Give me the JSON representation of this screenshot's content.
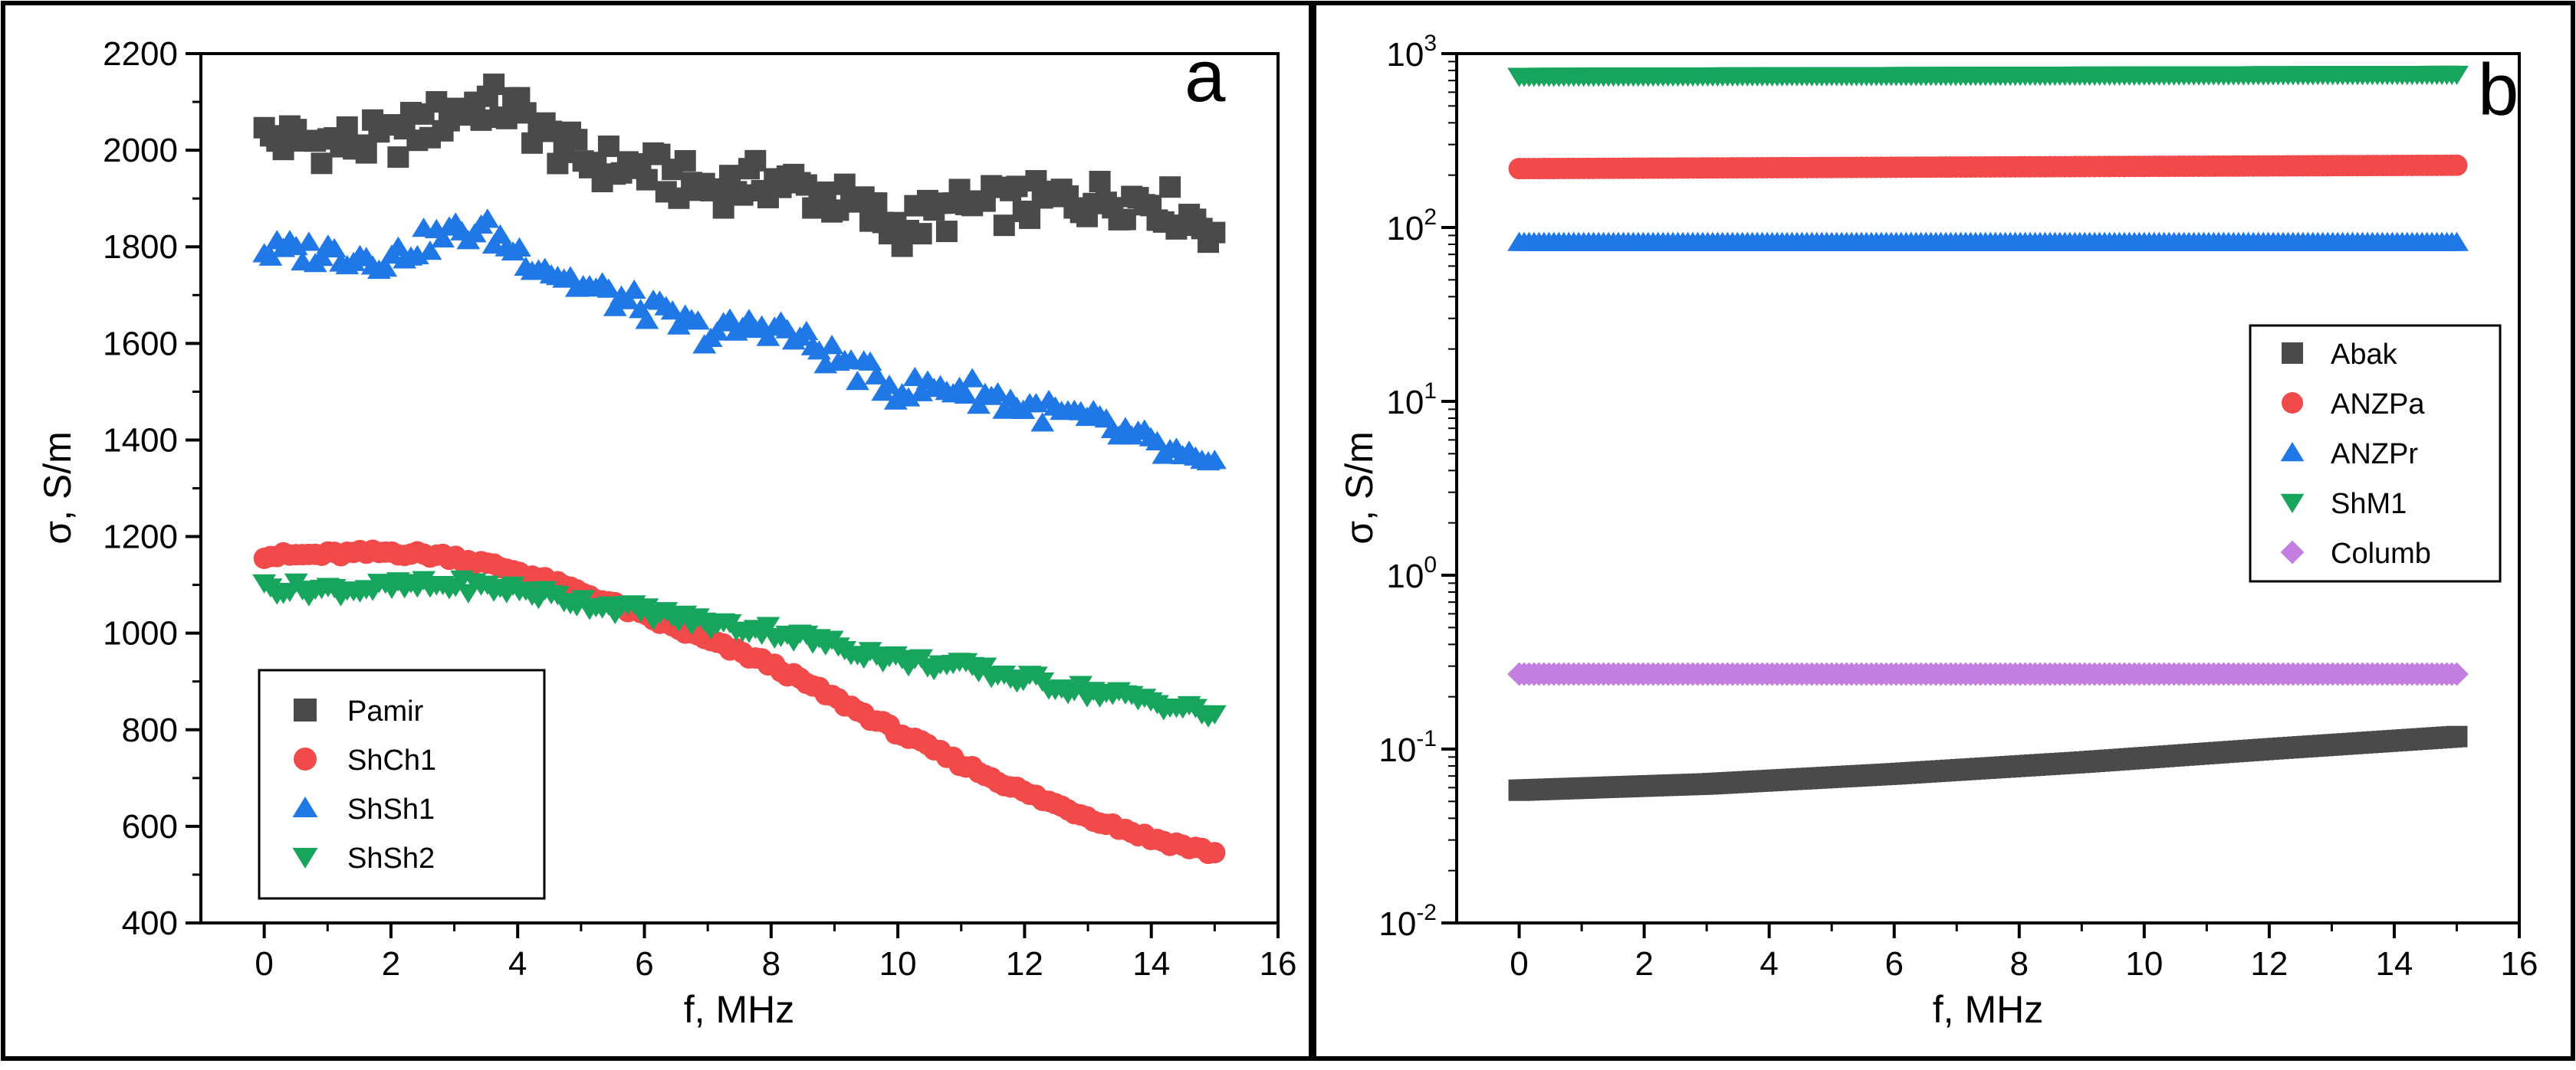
{
  "chart_data": [
    {
      "type": "scatter",
      "panel_label": "a",
      "xlabel": "f, MHz",
      "ylabel": "σ, S/m",
      "xlim": [
        -1,
        16
      ],
      "ylim": [
        400,
        2200
      ],
      "xticks": [
        "0",
        "2",
        "4",
        "6",
        "8",
        "10",
        "12",
        "14",
        "16"
      ],
      "yticks": [
        "400",
        "600",
        "800",
        "1000",
        "1200",
        "1400",
        "1600",
        "1800",
        "2000",
        "2200"
      ],
      "legend_position": "lower-left",
      "series": [
        {
          "name": "Pamir",
          "marker": "square",
          "color": "#4a4a4a",
          "x": [
            0,
            1,
            2,
            2.5,
            3,
            3.5,
            4,
            4.5,
            5,
            6,
            7,
            8,
            9,
            10,
            11,
            12,
            13,
            14,
            15
          ],
          "y": [
            2025,
            2015,
            2020,
            2050,
            2080,
            2100,
            2080,
            2020,
            1980,
            1960,
            1920,
            1940,
            1900,
            1840,
            1880,
            1890,
            1900,
            1900,
            1840
          ]
        },
        {
          "name": "ShCh1",
          "marker": "circle",
          "color": "#f24a4a",
          "x": [
            0,
            1,
            2,
            3,
            4,
            5,
            6,
            7,
            8,
            9,
            10,
            11,
            12,
            13,
            14,
            15
          ],
          "y": [
            1160,
            1163,
            1168,
            1158,
            1128,
            1085,
            1035,
            985,
            935,
            865,
            795,
            730,
            670,
            620,
            575,
            545
          ]
        },
        {
          "name": "ShSh1",
          "marker": "triangle-up",
          "color": "#1f78e6",
          "x": [
            0,
            1,
            2,
            2.5,
            3,
            3.5,
            4,
            5,
            6,
            7,
            8,
            9,
            10,
            11,
            12,
            13,
            14,
            15
          ],
          "y": [
            1790,
            1790,
            1775,
            1810,
            1830,
            1835,
            1790,
            1720,
            1675,
            1620,
            1640,
            1570,
            1505,
            1510,
            1470,
            1440,
            1390,
            1330
          ]
        },
        {
          "name": "ShSh2",
          "marker": "triangle-down",
          "color": "#17a55e",
          "x": [
            0,
            1,
            2,
            3,
            4,
            5,
            6,
            7,
            8,
            9,
            10,
            11,
            12,
            13,
            14,
            15
          ],
          "y": [
            1095,
            1090,
            1095,
            1100,
            1090,
            1065,
            1045,
            1020,
            1005,
            975,
            945,
            930,
            905,
            880,
            860,
            830
          ]
        }
      ]
    },
    {
      "type": "scatter",
      "panel_label": "b",
      "xlabel": "f, MHz",
      "ylabel": "σ, S/m",
      "yscale": "log",
      "xlim": [
        -1,
        16
      ],
      "ylim": [
        0.01,
        1000
      ],
      "xticks": [
        "0",
        "2",
        "4",
        "6",
        "8",
        "10",
        "12",
        "14",
        "16"
      ],
      "yticks": [
        {
          "base": "10",
          "exp": "-2",
          "value": 0.01
        },
        {
          "base": "10",
          "exp": "-1",
          "value": 0.1
        },
        {
          "base": "10",
          "exp": "0",
          "value": 1
        },
        {
          "base": "10",
          "exp": "1",
          "value": 10
        },
        {
          "base": "10",
          "exp": "2",
          "value": 100
        },
        {
          "base": "10",
          "exp": "3",
          "value": 1000
        }
      ],
      "legend_position": "right",
      "series": [
        {
          "name": "Abak",
          "marker": "square",
          "color": "#4a4a4a",
          "x": [
            0,
            3,
            6,
            9,
            12,
            15
          ],
          "y": [
            0.058,
            0.063,
            0.072,
            0.084,
            0.1,
            0.118
          ]
        },
        {
          "name": "ANZPa",
          "marker": "circle",
          "color": "#f24a4a",
          "x": [
            0,
            15
          ],
          "y": [
            218,
            228
          ]
        },
        {
          "name": "ANZPr",
          "marker": "triangle-up",
          "color": "#1f78e6",
          "x": [
            0,
            15
          ],
          "y": [
            82,
            82
          ]
        },
        {
          "name": "ShM1",
          "marker": "triangle-down",
          "color": "#17a55e",
          "x": [
            0,
            15
          ],
          "y": [
            740,
            760
          ]
        },
        {
          "name": "Columb",
          "marker": "diamond",
          "color": "#c27fe0",
          "x": [
            0,
            15
          ],
          "y": [
            0.27,
            0.27
          ]
        }
      ]
    }
  ]
}
